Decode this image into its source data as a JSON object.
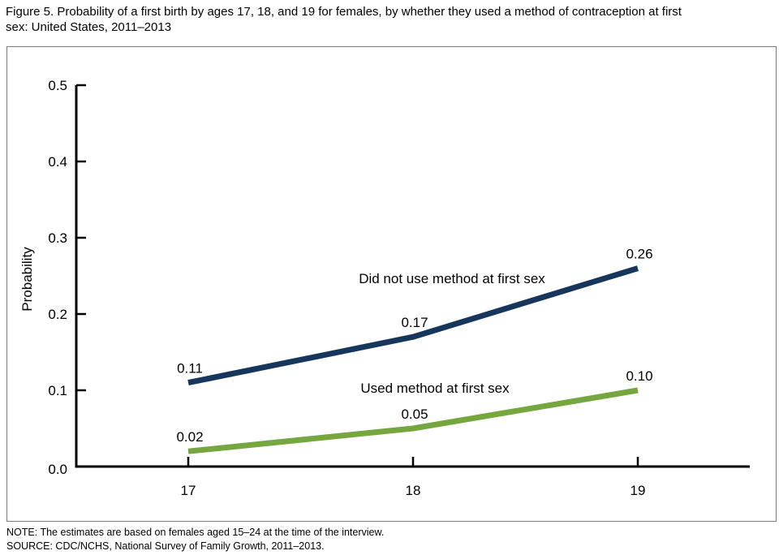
{
  "title": {
    "lines": [
      "Figure 5. Probability of a first birth by ages 17, 18, and 19 for females, by whether they used a method of contraception at first",
      "sex: United States, 2011–2013"
    ]
  },
  "chart_data": {
    "type": "line",
    "title": "Figure 5. Probability of a first birth by ages 17, 18, and 19 for females, by whether they used a method of contraception at first sex: United States, 2011–2013",
    "x": [
      17,
      18,
      19
    ],
    "xtick_labels": [
      "17",
      "18",
      "19"
    ],
    "xlabel": "",
    "ylabel": "Probability",
    "ylim": [
      0.0,
      0.5
    ],
    "yticks": [
      0.0,
      0.1,
      0.2,
      0.3,
      0.4,
      0.5
    ],
    "ytick_labels": [
      "0.0",
      "0.1",
      "0.2",
      "0.3",
      "0.4",
      "0.5"
    ],
    "grid": false,
    "legend_position": "inline-annotations",
    "series": [
      {
        "name": "Did not use method at first sex",
        "color": "#16365c",
        "values": [
          0.11,
          0.17,
          0.26
        ],
        "point_labels": [
          "0.11",
          "0.17",
          "0.26"
        ]
      },
      {
        "name": "Used method at first sex",
        "color": "#76a73f",
        "values": [
          0.02,
          0.05,
          0.1
        ],
        "point_labels": [
          "0.02",
          "0.05",
          "0.10"
        ]
      }
    ]
  },
  "notes": {
    "note": "NOTE: The estimates are based on females aged 15–24 at the time of the interview.",
    "source": "SOURCE: CDC/NCHS, National Survey of Family Growth, 2011–2013."
  }
}
